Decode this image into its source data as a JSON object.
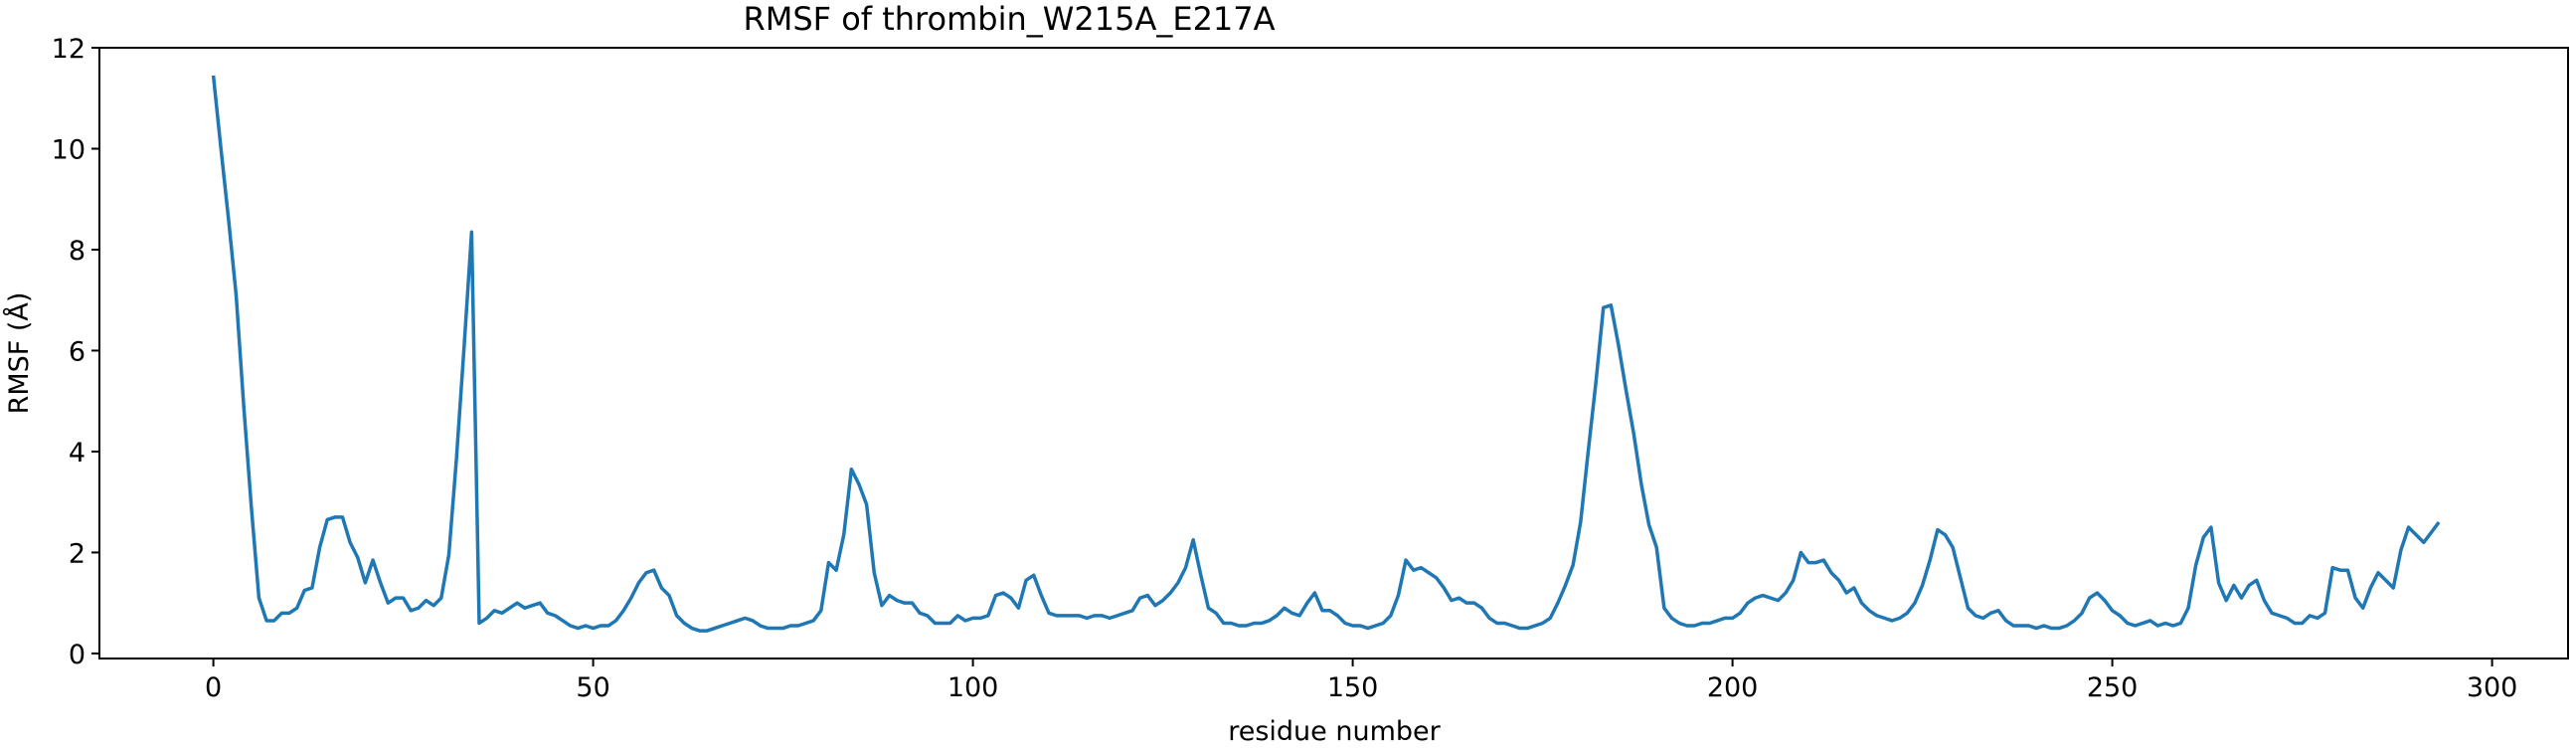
{
  "chart_data": {
    "type": "line",
    "title": "RMSF of thrombin_W215A_E217A",
    "xlabel": "residue number",
    "ylabel": "RMSF (Å)",
    "xlim": [
      -15,
      310
    ],
    "ylim": [
      -0.1,
      12.0
    ],
    "xticks": [
      0,
      50,
      100,
      150,
      200,
      250,
      300
    ],
    "yticks": [
      0,
      2,
      4,
      6,
      8,
      10,
      12
    ],
    "grid": false,
    "series": [
      {
        "color": "#1f77b4",
        "values": [
          11.45,
          10.0,
          8.6,
          7.1,
          4.9,
          2.9,
          1.1,
          0.65,
          0.65,
          0.8,
          0.8,
          0.9,
          1.25,
          1.3,
          2.1,
          2.65,
          2.7,
          2.7,
          2.2,
          1.9,
          1.4,
          1.85,
          1.4,
          1.0,
          1.1,
          1.1,
          0.85,
          0.9,
          1.05,
          0.95,
          1.1,
          1.95,
          3.85,
          6.05,
          8.35,
          0.6,
          0.7,
          0.85,
          0.8,
          0.9,
          1.0,
          0.9,
          0.95,
          1.0,
          0.8,
          0.75,
          0.65,
          0.55,
          0.5,
          0.55,
          0.5,
          0.55,
          0.55,
          0.65,
          0.85,
          1.1,
          1.4,
          1.6,
          1.65,
          1.3,
          1.15,
          0.75,
          0.6,
          0.5,
          0.45,
          0.45,
          0.5,
          0.55,
          0.6,
          0.65,
          0.7,
          0.65,
          0.55,
          0.5,
          0.5,
          0.5,
          0.55,
          0.55,
          0.6,
          0.65,
          0.85,
          1.8,
          1.65,
          2.35,
          3.65,
          3.35,
          2.95,
          1.6,
          0.95,
          1.15,
          1.05,
          1.0,
          1.0,
          0.8,
          0.75,
          0.6,
          0.6,
          0.6,
          0.75,
          0.65,
          0.7,
          0.7,
          0.75,
          1.15,
          1.2,
          1.1,
          0.9,
          1.45,
          1.55,
          1.15,
          0.8,
          0.75,
          0.75,
          0.75,
          0.75,
          0.7,
          0.75,
          0.75,
          0.7,
          0.75,
          0.8,
          0.85,
          1.1,
          1.15,
          0.95,
          1.05,
          1.2,
          1.4,
          1.7,
          2.25,
          1.55,
          0.9,
          0.8,
          0.6,
          0.6,
          0.55,
          0.55,
          0.6,
          0.6,
          0.65,
          0.75,
          0.9,
          0.8,
          0.75,
          1.0,
          1.2,
          0.85,
          0.85,
          0.75,
          0.6,
          0.55,
          0.55,
          0.5,
          0.55,
          0.6,
          0.75,
          1.15,
          1.85,
          1.65,
          1.7,
          1.6,
          1.5,
          1.3,
          1.05,
          1.1,
          1.0,
          1.0,
          0.9,
          0.7,
          0.6,
          0.6,
          0.55,
          0.5,
          0.5,
          0.55,
          0.6,
          0.7,
          1.0,
          1.35,
          1.75,
          2.6,
          4.0,
          5.35,
          6.85,
          6.9,
          6.1,
          5.2,
          4.35,
          3.35,
          2.55,
          2.1,
          0.9,
          0.7,
          0.6,
          0.55,
          0.55,
          0.6,
          0.6,
          0.65,
          0.7,
          0.7,
          0.8,
          1.0,
          1.1,
          1.15,
          1.1,
          1.05,
          1.2,
          1.45,
          2.0,
          1.8,
          1.8,
          1.85,
          1.6,
          1.45,
          1.2,
          1.3,
          1.0,
          0.85,
          0.75,
          0.7,
          0.65,
          0.7,
          0.8,
          1.0,
          1.35,
          1.85,
          2.45,
          2.35,
          2.1,
          1.5,
          0.9,
          0.75,
          0.7,
          0.8,
          0.85,
          0.65,
          0.55,
          0.55,
          0.55,
          0.5,
          0.55,
          0.5,
          0.5,
          0.55,
          0.65,
          0.8,
          1.1,
          1.2,
          1.05,
          0.85,
          0.75,
          0.6,
          0.55,
          0.6,
          0.65,
          0.55,
          0.6,
          0.55,
          0.6,
          0.9,
          1.75,
          2.3,
          2.5,
          1.4,
          1.05,
          1.35,
          1.1,
          1.35,
          1.45,
          1.05,
          0.8,
          0.75,
          0.7,
          0.6,
          0.6,
          0.75,
          0.7,
          0.8,
          1.7,
          1.65,
          1.65,
          1.1,
          0.9,
          1.3,
          1.6,
          1.45,
          1.3,
          2.05,
          2.5,
          2.35,
          2.2,
          2.4,
          2.6
        ]
      }
    ]
  }
}
